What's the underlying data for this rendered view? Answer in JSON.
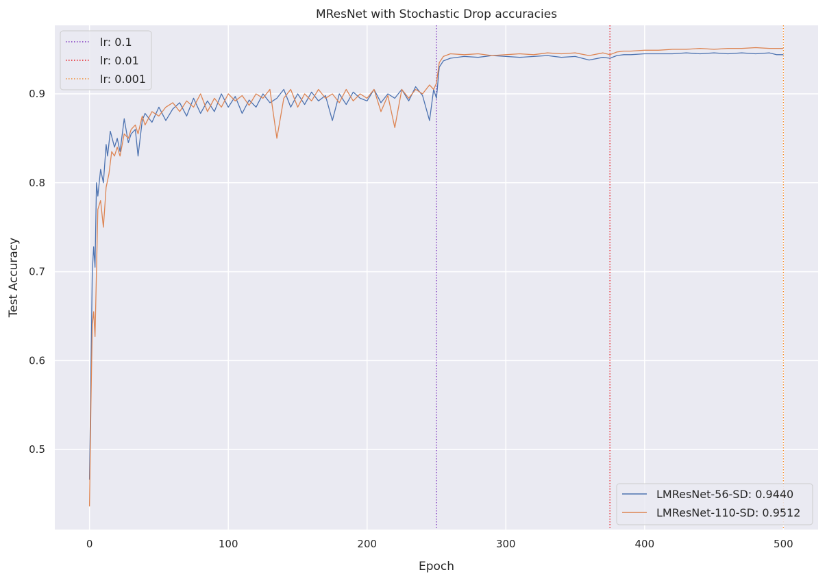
{
  "chart_data": {
    "type": "line",
    "title": "MResNet with Stochastic Drop accuracies",
    "xlabel": "Epoch",
    "ylabel": "Test Accuracy",
    "xlim": [
      -25,
      525
    ],
    "ylim": [
      0.41,
      0.977
    ],
    "xticks": [
      0,
      100,
      200,
      300,
      400,
      500
    ],
    "yticks": [
      0.5,
      0.6,
      0.7,
      0.8,
      0.9
    ],
    "xtick_labels": [
      "0",
      "100",
      "200",
      "300",
      "400",
      "500"
    ],
    "ytick_labels": [
      "0.5",
      "0.6",
      "0.7",
      "0.8",
      "0.9"
    ],
    "grid": true,
    "series": [
      {
        "name": "LMResNet-56-SD: 0.9440",
        "color": "#4c72b0",
        "x": [
          0,
          2,
          3,
          4,
          5,
          6,
          8,
          10,
          12,
          13,
          15,
          18,
          20,
          22,
          25,
          28,
          30,
          33,
          35,
          38,
          40,
          45,
          50,
          55,
          60,
          65,
          70,
          75,
          80,
          85,
          90,
          95,
          100,
          105,
          110,
          115,
          120,
          125,
          130,
          135,
          140,
          145,
          150,
          155,
          160,
          165,
          170,
          175,
          180,
          185,
          190,
          195,
          200,
          205,
          210,
          215,
          220,
          225,
          230,
          235,
          240,
          245,
          248,
          250,
          252,
          255,
          260,
          270,
          280,
          290,
          300,
          310,
          320,
          330,
          340,
          350,
          360,
          370,
          375,
          380,
          385,
          390,
          400,
          410,
          420,
          430,
          440,
          450,
          460,
          470,
          480,
          490,
          495,
          500
        ],
        "y": [
          0.466,
          0.7,
          0.728,
          0.705,
          0.8,
          0.785,
          0.815,
          0.8,
          0.843,
          0.83,
          0.858,
          0.84,
          0.85,
          0.835,
          0.872,
          0.845,
          0.855,
          0.86,
          0.83,
          0.87,
          0.878,
          0.868,
          0.885,
          0.87,
          0.883,
          0.89,
          0.875,
          0.895,
          0.878,
          0.892,
          0.88,
          0.9,
          0.885,
          0.897,
          0.878,
          0.893,
          0.885,
          0.9,
          0.89,
          0.895,
          0.905,
          0.885,
          0.9,
          0.888,
          0.902,
          0.892,
          0.898,
          0.87,
          0.9,
          0.888,
          0.902,
          0.895,
          0.892,
          0.905,
          0.89,
          0.9,
          0.895,
          0.905,
          0.892,
          0.908,
          0.898,
          0.87,
          0.905,
          0.895,
          0.93,
          0.937,
          0.94,
          0.942,
          0.941,
          0.943,
          0.942,
          0.941,
          0.942,
          0.943,
          0.941,
          0.942,
          0.938,
          0.941,
          0.94,
          0.943,
          0.944,
          0.944,
          0.945,
          0.945,
          0.945,
          0.946,
          0.945,
          0.946,
          0.945,
          0.946,
          0.945,
          0.946,
          0.944,
          0.944
        ]
      },
      {
        "name": "LMResNet-110-SD: 0.9512",
        "color": "#dd8452",
        "x": [
          0,
          1,
          2,
          3,
          4,
          5,
          6,
          8,
          10,
          12,
          14,
          16,
          18,
          20,
          22,
          25,
          28,
          30,
          33,
          35,
          38,
          40,
          45,
          50,
          55,
          60,
          65,
          70,
          75,
          80,
          85,
          90,
          95,
          100,
          105,
          110,
          115,
          120,
          125,
          130,
          135,
          140,
          145,
          150,
          155,
          160,
          165,
          170,
          175,
          180,
          185,
          190,
          195,
          200,
          205,
          210,
          215,
          220,
          225,
          230,
          235,
          240,
          245,
          248,
          250,
          252,
          255,
          260,
          270,
          280,
          290,
          300,
          310,
          320,
          330,
          340,
          350,
          360,
          370,
          375,
          380,
          385,
          390,
          400,
          410,
          420,
          430,
          440,
          450,
          460,
          470,
          480,
          490,
          495,
          500
        ],
        "y": [
          0.436,
          0.55,
          0.64,
          0.655,
          0.627,
          0.7,
          0.77,
          0.78,
          0.75,
          0.795,
          0.81,
          0.835,
          0.83,
          0.84,
          0.83,
          0.855,
          0.85,
          0.86,
          0.865,
          0.855,
          0.875,
          0.865,
          0.88,
          0.875,
          0.885,
          0.89,
          0.88,
          0.892,
          0.885,
          0.9,
          0.88,
          0.895,
          0.885,
          0.9,
          0.892,
          0.898,
          0.887,
          0.9,
          0.895,
          0.905,
          0.85,
          0.895,
          0.905,
          0.885,
          0.9,
          0.892,
          0.905,
          0.895,
          0.9,
          0.89,
          0.905,
          0.892,
          0.9,
          0.895,
          0.905,
          0.88,
          0.898,
          0.862,
          0.905,
          0.895,
          0.905,
          0.9,
          0.91,
          0.905,
          0.912,
          0.935,
          0.942,
          0.945,
          0.944,
          0.945,
          0.943,
          0.944,
          0.945,
          0.944,
          0.946,
          0.945,
          0.946,
          0.943,
          0.946,
          0.944,
          0.947,
          0.948,
          0.948,
          0.949,
          0.949,
          0.95,
          0.95,
          0.951,
          0.95,
          0.951,
          0.951,
          0.952,
          0.951,
          0.951,
          0.951
        ]
      }
    ],
    "vlines": [
      {
        "label": "lr: 0.1",
        "x": 250,
        "color": "#7b2fbe"
      },
      {
        "label": "lr: 0.01",
        "x": 375,
        "color": "#e8141b"
      },
      {
        "label": "lr: 0.001",
        "x": 500,
        "color": "#f0882a"
      }
    ],
    "legend_lr_placement": "upper-left",
    "legend_series_placement": "lower-right"
  }
}
